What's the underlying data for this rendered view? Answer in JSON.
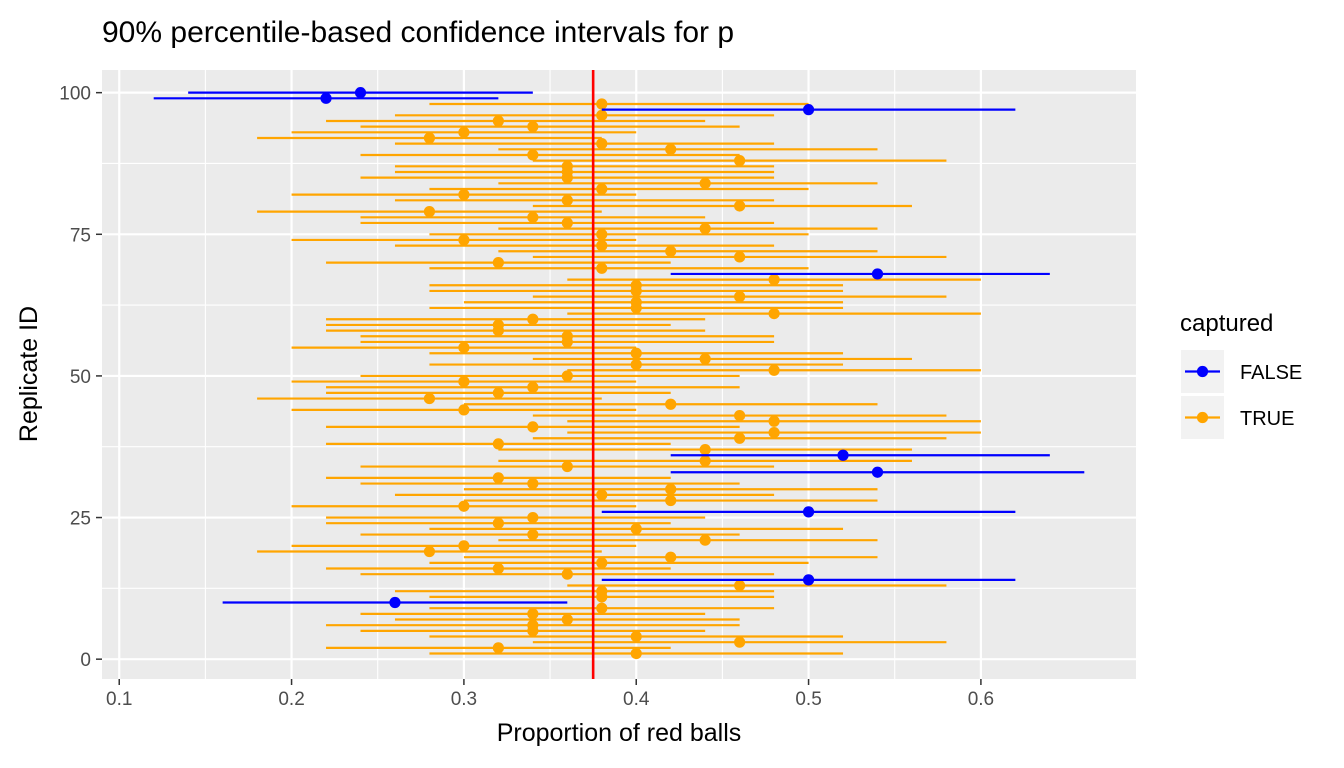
{
  "chart_data": {
    "type": "scatter",
    "title": "90% percentile-based confidence intervals for p",
    "xlabel": "Proportion of red balls",
    "ylabel": "Replicate ID",
    "xlim": [
      0.09,
      0.69
    ],
    "ylim": [
      -3.5,
      104
    ],
    "x_ticks": [
      0.1,
      0.2,
      0.3,
      0.4,
      0.5,
      0.6
    ],
    "x_tick_labels": [
      "0.1",
      "0.2",
      "0.3",
      "0.4",
      "0.5",
      "0.6"
    ],
    "y_ticks": [
      0,
      25,
      50,
      75,
      100
    ],
    "y_tick_labels": [
      "0",
      "25",
      "50",
      "75",
      "100"
    ],
    "grid": true,
    "reference_line": {
      "x": 0.375,
      "color": "#ff0000"
    },
    "legend": {
      "title": "captured",
      "position": "right",
      "items": [
        {
          "label": "FALSE",
          "color": "#0000ff"
        },
        {
          "label": "TRUE",
          "color": "#ffa500"
        }
      ]
    },
    "colors": {
      "FALSE": "#0000ff",
      "TRUE": "#ffa500"
    },
    "points": [
      {
        "id": 1,
        "p_hat": 0.4,
        "lower": 0.28,
        "upper": 0.52,
        "captured": true
      },
      {
        "id": 2,
        "p_hat": 0.32,
        "lower": 0.22,
        "upper": 0.42,
        "captured": true
      },
      {
        "id": 3,
        "p_hat": 0.46,
        "lower": 0.34,
        "upper": 0.58,
        "captured": true
      },
      {
        "id": 4,
        "p_hat": 0.4,
        "lower": 0.28,
        "upper": 0.52,
        "captured": true
      },
      {
        "id": 5,
        "p_hat": 0.34,
        "lower": 0.24,
        "upper": 0.44,
        "captured": true
      },
      {
        "id": 6,
        "p_hat": 0.34,
        "lower": 0.22,
        "upper": 0.46,
        "captured": true
      },
      {
        "id": 7,
        "p_hat": 0.36,
        "lower": 0.26,
        "upper": 0.46,
        "captured": true
      },
      {
        "id": 8,
        "p_hat": 0.34,
        "lower": 0.24,
        "upper": 0.44,
        "captured": true
      },
      {
        "id": 9,
        "p_hat": 0.38,
        "lower": 0.28,
        "upper": 0.48,
        "captured": true
      },
      {
        "id": 10,
        "p_hat": 0.26,
        "lower": 0.16,
        "upper": 0.36,
        "captured": false
      },
      {
        "id": 11,
        "p_hat": 0.38,
        "lower": 0.28,
        "upper": 0.48,
        "captured": true
      },
      {
        "id": 12,
        "p_hat": 0.38,
        "lower": 0.26,
        "upper": 0.48,
        "captured": true
      },
      {
        "id": 13,
        "p_hat": 0.46,
        "lower": 0.36,
        "upper": 0.58,
        "captured": true
      },
      {
        "id": 14,
        "p_hat": 0.5,
        "lower": 0.38,
        "upper": 0.62,
        "captured": false
      },
      {
        "id": 15,
        "p_hat": 0.36,
        "lower": 0.24,
        "upper": 0.48,
        "captured": true
      },
      {
        "id": 16,
        "p_hat": 0.32,
        "lower": 0.22,
        "upper": 0.42,
        "captured": true
      },
      {
        "id": 17,
        "p_hat": 0.38,
        "lower": 0.28,
        "upper": 0.5,
        "captured": true
      },
      {
        "id": 18,
        "p_hat": 0.42,
        "lower": 0.3,
        "upper": 0.54,
        "captured": true
      },
      {
        "id": 19,
        "p_hat": 0.28,
        "lower": 0.18,
        "upper": 0.38,
        "captured": true
      },
      {
        "id": 20,
        "p_hat": 0.3,
        "lower": 0.2,
        "upper": 0.4,
        "captured": true
      },
      {
        "id": 21,
        "p_hat": 0.44,
        "lower": 0.32,
        "upper": 0.54,
        "captured": true
      },
      {
        "id": 22,
        "p_hat": 0.34,
        "lower": 0.24,
        "upper": 0.46,
        "captured": true
      },
      {
        "id": 23,
        "p_hat": 0.4,
        "lower": 0.28,
        "upper": 0.52,
        "captured": true
      },
      {
        "id": 24,
        "p_hat": 0.32,
        "lower": 0.22,
        "upper": 0.42,
        "captured": true
      },
      {
        "id": 25,
        "p_hat": 0.34,
        "lower": 0.22,
        "upper": 0.44,
        "captured": true
      },
      {
        "id": 26,
        "p_hat": 0.5,
        "lower": 0.38,
        "upper": 0.62,
        "captured": false
      },
      {
        "id": 27,
        "p_hat": 0.3,
        "lower": 0.2,
        "upper": 0.4,
        "captured": true
      },
      {
        "id": 28,
        "p_hat": 0.42,
        "lower": 0.3,
        "upper": 0.54,
        "captured": true
      },
      {
        "id": 29,
        "p_hat": 0.38,
        "lower": 0.26,
        "upper": 0.48,
        "captured": true
      },
      {
        "id": 30,
        "p_hat": 0.42,
        "lower": 0.3,
        "upper": 0.54,
        "captured": true
      },
      {
        "id": 31,
        "p_hat": 0.34,
        "lower": 0.24,
        "upper": 0.46,
        "captured": true
      },
      {
        "id": 32,
        "p_hat": 0.32,
        "lower": 0.22,
        "upper": 0.42,
        "captured": true
      },
      {
        "id": 33,
        "p_hat": 0.54,
        "lower": 0.42,
        "upper": 0.66,
        "captured": false
      },
      {
        "id": 34,
        "p_hat": 0.36,
        "lower": 0.24,
        "upper": 0.48,
        "captured": true
      },
      {
        "id": 35,
        "p_hat": 0.44,
        "lower": 0.32,
        "upper": 0.56,
        "captured": true
      },
      {
        "id": 36,
        "p_hat": 0.52,
        "lower": 0.42,
        "upper": 0.64,
        "captured": false
      },
      {
        "id": 37,
        "p_hat": 0.44,
        "lower": 0.32,
        "upper": 0.56,
        "captured": true
      },
      {
        "id": 38,
        "p_hat": 0.32,
        "lower": 0.22,
        "upper": 0.42,
        "captured": true
      },
      {
        "id": 39,
        "p_hat": 0.46,
        "lower": 0.34,
        "upper": 0.58,
        "captured": true
      },
      {
        "id": 40,
        "p_hat": 0.48,
        "lower": 0.36,
        "upper": 0.6,
        "captured": true
      },
      {
        "id": 41,
        "p_hat": 0.34,
        "lower": 0.22,
        "upper": 0.46,
        "captured": true
      },
      {
        "id": 42,
        "p_hat": 0.48,
        "lower": 0.36,
        "upper": 0.6,
        "captured": true
      },
      {
        "id": 43,
        "p_hat": 0.46,
        "lower": 0.34,
        "upper": 0.58,
        "captured": true
      },
      {
        "id": 44,
        "p_hat": 0.3,
        "lower": 0.2,
        "upper": 0.4,
        "captured": true
      },
      {
        "id": 45,
        "p_hat": 0.42,
        "lower": 0.3,
        "upper": 0.54,
        "captured": true
      },
      {
        "id": 46,
        "p_hat": 0.28,
        "lower": 0.18,
        "upper": 0.38,
        "captured": true
      },
      {
        "id": 47,
        "p_hat": 0.32,
        "lower": 0.22,
        "upper": 0.42,
        "captured": true
      },
      {
        "id": 48,
        "p_hat": 0.34,
        "lower": 0.22,
        "upper": 0.46,
        "captured": true
      },
      {
        "id": 49,
        "p_hat": 0.3,
        "lower": 0.2,
        "upper": 0.4,
        "captured": true
      },
      {
        "id": 50,
        "p_hat": 0.36,
        "lower": 0.24,
        "upper": 0.46,
        "captured": true
      },
      {
        "id": 51,
        "p_hat": 0.48,
        "lower": 0.36,
        "upper": 0.6,
        "captured": true
      },
      {
        "id": 52,
        "p_hat": 0.4,
        "lower": 0.28,
        "upper": 0.52,
        "captured": true
      },
      {
        "id": 53,
        "p_hat": 0.44,
        "lower": 0.34,
        "upper": 0.56,
        "captured": true
      },
      {
        "id": 54,
        "p_hat": 0.4,
        "lower": 0.28,
        "upper": 0.52,
        "captured": true
      },
      {
        "id": 55,
        "p_hat": 0.3,
        "lower": 0.2,
        "upper": 0.4,
        "captured": true
      },
      {
        "id": 56,
        "p_hat": 0.36,
        "lower": 0.24,
        "upper": 0.48,
        "captured": true
      },
      {
        "id": 57,
        "p_hat": 0.36,
        "lower": 0.24,
        "upper": 0.48,
        "captured": true
      },
      {
        "id": 58,
        "p_hat": 0.32,
        "lower": 0.22,
        "upper": 0.44,
        "captured": true
      },
      {
        "id": 59,
        "p_hat": 0.32,
        "lower": 0.22,
        "upper": 0.42,
        "captured": true
      },
      {
        "id": 60,
        "p_hat": 0.34,
        "lower": 0.22,
        "upper": 0.44,
        "captured": true
      },
      {
        "id": 61,
        "p_hat": 0.48,
        "lower": 0.36,
        "upper": 0.6,
        "captured": true
      },
      {
        "id": 62,
        "p_hat": 0.4,
        "lower": 0.28,
        "upper": 0.52,
        "captured": true
      },
      {
        "id": 63,
        "p_hat": 0.4,
        "lower": 0.3,
        "upper": 0.52,
        "captured": true
      },
      {
        "id": 64,
        "p_hat": 0.46,
        "lower": 0.34,
        "upper": 0.58,
        "captured": true
      },
      {
        "id": 65,
        "p_hat": 0.4,
        "lower": 0.28,
        "upper": 0.52,
        "captured": true
      },
      {
        "id": 66,
        "p_hat": 0.4,
        "lower": 0.28,
        "upper": 0.52,
        "captured": true
      },
      {
        "id": 67,
        "p_hat": 0.48,
        "lower": 0.36,
        "upper": 0.6,
        "captured": true
      },
      {
        "id": 68,
        "p_hat": 0.54,
        "lower": 0.42,
        "upper": 0.64,
        "captured": false
      },
      {
        "id": 69,
        "p_hat": 0.38,
        "lower": 0.28,
        "upper": 0.5,
        "captured": true
      },
      {
        "id": 70,
        "p_hat": 0.32,
        "lower": 0.22,
        "upper": 0.42,
        "captured": true
      },
      {
        "id": 71,
        "p_hat": 0.46,
        "lower": 0.34,
        "upper": 0.58,
        "captured": true
      },
      {
        "id": 72,
        "p_hat": 0.42,
        "lower": 0.32,
        "upper": 0.54,
        "captured": true
      },
      {
        "id": 73,
        "p_hat": 0.38,
        "lower": 0.26,
        "upper": 0.48,
        "captured": true
      },
      {
        "id": 74,
        "p_hat": 0.3,
        "lower": 0.2,
        "upper": 0.4,
        "captured": true
      },
      {
        "id": 75,
        "p_hat": 0.38,
        "lower": 0.28,
        "upper": 0.5,
        "captured": true
      },
      {
        "id": 76,
        "p_hat": 0.44,
        "lower": 0.32,
        "upper": 0.54,
        "captured": true
      },
      {
        "id": 77,
        "p_hat": 0.36,
        "lower": 0.24,
        "upper": 0.48,
        "captured": true
      },
      {
        "id": 78,
        "p_hat": 0.34,
        "lower": 0.24,
        "upper": 0.44,
        "captured": true
      },
      {
        "id": 79,
        "p_hat": 0.28,
        "lower": 0.18,
        "upper": 0.38,
        "captured": true
      },
      {
        "id": 80,
        "p_hat": 0.46,
        "lower": 0.34,
        "upper": 0.56,
        "captured": true
      },
      {
        "id": 81,
        "p_hat": 0.36,
        "lower": 0.26,
        "upper": 0.48,
        "captured": true
      },
      {
        "id": 82,
        "p_hat": 0.3,
        "lower": 0.2,
        "upper": 0.4,
        "captured": true
      },
      {
        "id": 83,
        "p_hat": 0.38,
        "lower": 0.28,
        "upper": 0.5,
        "captured": true
      },
      {
        "id": 84,
        "p_hat": 0.44,
        "lower": 0.32,
        "upper": 0.54,
        "captured": true
      },
      {
        "id": 85,
        "p_hat": 0.36,
        "lower": 0.24,
        "upper": 0.48,
        "captured": true
      },
      {
        "id": 86,
        "p_hat": 0.36,
        "lower": 0.26,
        "upper": 0.48,
        "captured": true
      },
      {
        "id": 87,
        "p_hat": 0.36,
        "lower": 0.26,
        "upper": 0.48,
        "captured": true
      },
      {
        "id": 88,
        "p_hat": 0.46,
        "lower": 0.34,
        "upper": 0.58,
        "captured": true
      },
      {
        "id": 89,
        "p_hat": 0.34,
        "lower": 0.24,
        "upper": 0.46,
        "captured": true
      },
      {
        "id": 90,
        "p_hat": 0.42,
        "lower": 0.32,
        "upper": 0.54,
        "captured": true
      },
      {
        "id": 91,
        "p_hat": 0.38,
        "lower": 0.26,
        "upper": 0.48,
        "captured": true
      },
      {
        "id": 92,
        "p_hat": 0.28,
        "lower": 0.18,
        "upper": 0.38,
        "captured": true
      },
      {
        "id": 93,
        "p_hat": 0.3,
        "lower": 0.2,
        "upper": 0.4,
        "captured": true
      },
      {
        "id": 94,
        "p_hat": 0.34,
        "lower": 0.24,
        "upper": 0.46,
        "captured": true
      },
      {
        "id": 95,
        "p_hat": 0.32,
        "lower": 0.22,
        "upper": 0.44,
        "captured": true
      },
      {
        "id": 96,
        "p_hat": 0.38,
        "lower": 0.26,
        "upper": 0.48,
        "captured": true
      },
      {
        "id": 97,
        "p_hat": 0.5,
        "lower": 0.38,
        "upper": 0.62,
        "captured": false
      },
      {
        "id": 98,
        "p_hat": 0.38,
        "lower": 0.28,
        "upper": 0.5,
        "captured": true
      },
      {
        "id": 99,
        "p_hat": 0.22,
        "lower": 0.12,
        "upper": 0.32,
        "captured": false
      },
      {
        "id": 100,
        "p_hat": 0.24,
        "lower": 0.14,
        "upper": 0.34,
        "captured": false
      }
    ]
  }
}
